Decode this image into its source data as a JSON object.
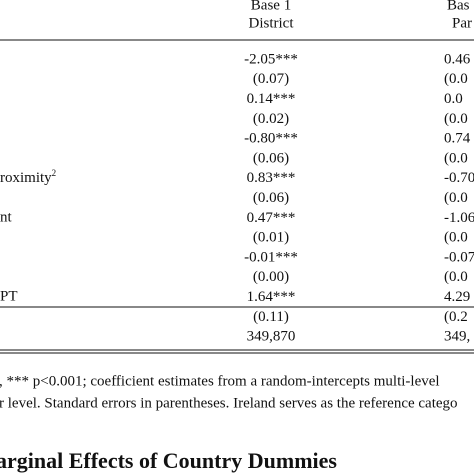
{
  "table": {
    "header": [
      [
        "Base 1",
        "District"
      ],
      [
        "Bas",
        "Par"
      ]
    ],
    "rows": [
      {
        "cells": [
          "-2.05***",
          "0.46"
        ]
      },
      {
        "cells": [
          "(0.07)",
          "(0.0"
        ]
      },
      {
        "cells": [
          "0.14***",
          "0.0"
        ]
      },
      {
        "cells": [
          "(0.02)",
          "(0.0"
        ]
      },
      {
        "cells": [
          "-0.80***",
          "0.74"
        ]
      },
      {
        "cells": [
          "(0.06)",
          "(0.0"
        ]
      },
      {
        "label": "roximity",
        "sup": "2",
        "cells": [
          "0.83***",
          "-0.70"
        ]
      },
      {
        "cells": [
          "(0.06)",
          "(0.0"
        ]
      },
      {
        "label": "nt",
        "cells": [
          "0.47***",
          "-1.06"
        ]
      },
      {
        "cells": [
          "(0.01)",
          "(0.0"
        ]
      },
      {
        "cells": [
          "-0.01***",
          "-0.07"
        ]
      },
      {
        "cells": [
          "(0.00)",
          "(0.0"
        ]
      },
      {
        "label": "PT",
        "cells": [
          "1.64***",
          "4.29"
        ]
      },
      {
        "cells": [
          "(0.11)",
          "(0.2"
        ]
      },
      {
        "cells": [
          "349,870",
          "349,"
        ]
      }
    ]
  },
  "notes": [
    ", *** p<0.001; coefficient estimates from a random-intercepts multi-level",
    "r level. Standard errors in parentheses. Ireland serves as the reference catego"
  ],
  "heading": "arginal Effects of Country Dummies"
}
